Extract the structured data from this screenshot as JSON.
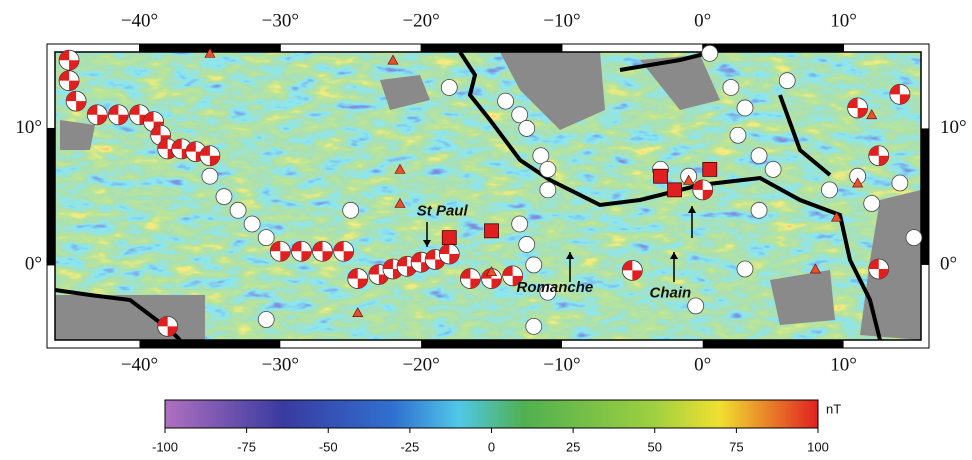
{
  "chart_data": {
    "type": "map",
    "xlim": [
      -46,
      15.5
    ],
    "ylim": [
      -5.5,
      15.6
    ],
    "xticks": [
      {
        "value": -40,
        "label": "−40°"
      },
      {
        "value": -30,
        "label": "−30°"
      },
      {
        "value": -20,
        "label": "−20°"
      },
      {
        "value": -10,
        "label": "−10°"
      },
      {
        "value": 0,
        "label": "0°"
      },
      {
        "value": 10,
        "label": "10°"
      }
    ],
    "yticks": [
      {
        "value": 0,
        "label": "0°"
      },
      {
        "value": 10,
        "label": "10°"
      }
    ],
    "annotations": [
      {
        "text": "St Paul",
        "x": -18.5,
        "y": 3.9
      },
      {
        "text": "Romanche",
        "x": -10.5,
        "y": -1.7
      },
      {
        "text": "Chain",
        "x": -2.3,
        "y": -2.1
      }
    ],
    "focal_mechanisms": {
      "x": [
        -45,
        -45,
        -44.5,
        -43,
        -41.5,
        -40,
        -39,
        -38.5,
        -38,
        -37,
        -36,
        -35,
        -30,
        -28.5,
        -27,
        -25.5,
        -24.5,
        -23,
        -22,
        -21,
        -20,
        -19,
        -18,
        -16.5,
        -15,
        -13.5,
        -5,
        0,
        11,
        14,
        12.5,
        12.5,
        -38
      ],
      "y": [
        15,
        13.5,
        12,
        11,
        11,
        11,
        10.5,
        9.5,
        8.5,
        8.5,
        8.3,
        8,
        1,
        1,
        1,
        1,
        -1,
        -0.7,
        -0.3,
        -0.1,
        0.2,
        0.4,
        0.8,
        -1,
        -1,
        -0.8,
        -0.4,
        5.5,
        11.5,
        12.5,
        8,
        -0.3,
        -4.5
      ]
    },
    "events": {
      "x": [
        -35,
        -34,
        -33,
        -32,
        -31,
        -25,
        -31,
        -18,
        -14,
        -13,
        -12.5,
        -11.5,
        -11,
        -11,
        -13,
        -12.5,
        -12,
        -11,
        -12,
        0.5,
        2,
        3,
        2.5,
        4,
        5,
        4,
        9,
        11,
        12,
        14,
        15,
        3,
        -3,
        -1,
        -0.5,
        6
      ],
      "y": [
        6.5,
        5,
        4,
        3,
        2,
        4,
        -4,
        13,
        12,
        11,
        10,
        8,
        7,
        5.5,
        3,
        1.5,
        0,
        -2,
        -4.5,
        15.5,
        13,
        11.5,
        9.5,
        8,
        7,
        4,
        5.5,
        6.5,
        4.5,
        6,
        2,
        -0.3,
        7,
        6.5,
        -3,
        13.5
      ]
    },
    "volcanoes": {
      "x": [
        -35,
        -22,
        -21.5,
        -21.5,
        -24.5,
        -15,
        12,
        11,
        9.5,
        8,
        -1
      ],
      "y": [
        15.5,
        15,
        7,
        4.5,
        -3.5,
        -0.5,
        11,
        6,
        3.5,
        -0.3,
        6.2
      ]
    },
    "stations": {
      "x": [
        -18,
        -15,
        -3,
        -2,
        0.5
      ],
      "y": [
        2,
        2.5,
        6.5,
        5.5,
        7
      ]
    },
    "colorbar": {
      "label": "nT",
      "lim": [
        -100,
        100
      ],
      "ticks": [
        -100,
        -75,
        -50,
        -25,
        0,
        25,
        50,
        75,
        100
      ]
    }
  }
}
